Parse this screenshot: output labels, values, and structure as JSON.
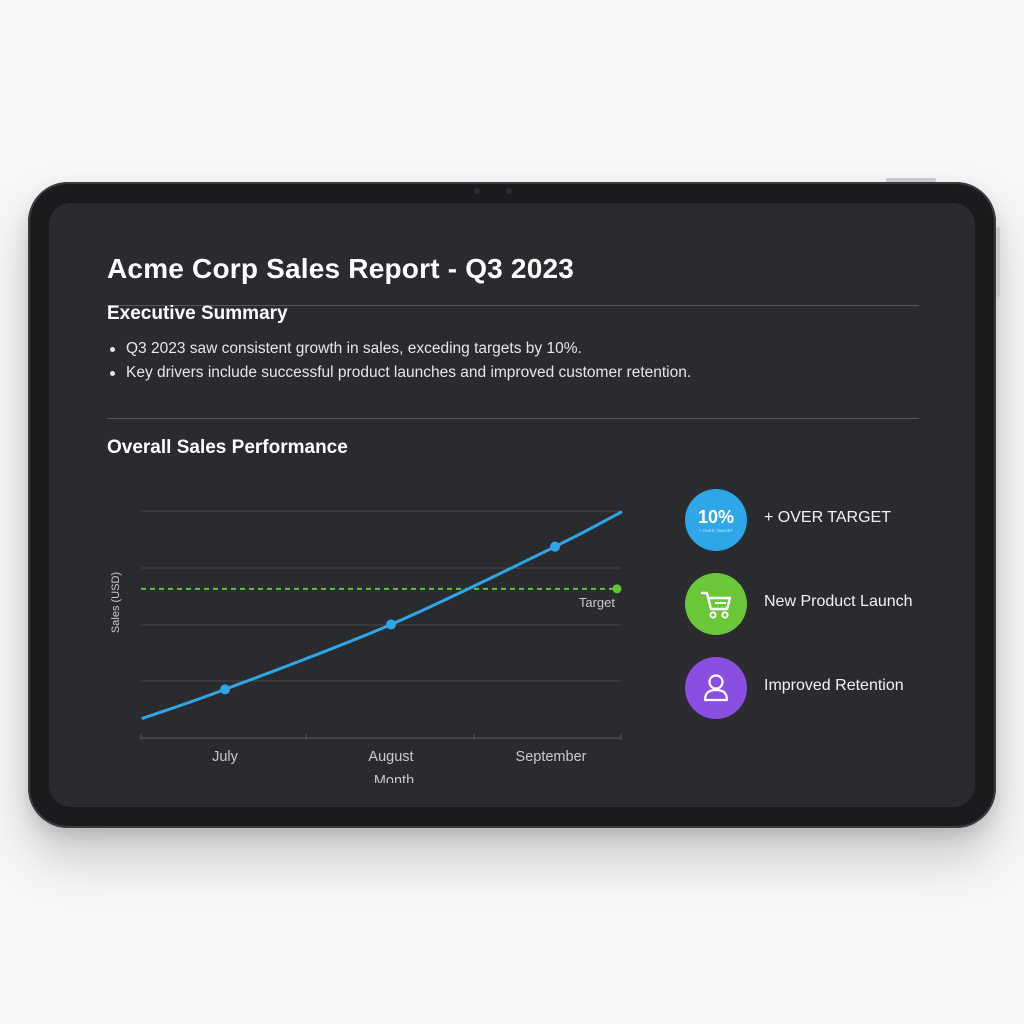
{
  "report": {
    "title": "Acme Corp Sales Report - Q3 2023"
  },
  "summary": {
    "heading": "Executive Summary",
    "bullets": [
      "Q3 2023 saw consistent growth in sales, exceding targets by 10%.",
      "Key drivers include successful product launches and improved customer retention."
    ]
  },
  "performance": {
    "heading": "Overall Sales Performance"
  },
  "chart_data": {
    "type": "line",
    "categories": [
      "July",
      "August",
      "September"
    ],
    "xlabel": "Month",
    "ylabel": "Sales (USD)",
    "series": [
      {
        "name": "",
        "color": "#2ea6e8",
        "points": [
          {
            "x": "July",
            "y": 1.0
          },
          {
            "x": "August",
            "y": 1.2
          },
          {
            "x": "September",
            "y": 1.44
          }
        ]
      }
    ],
    "target": {
      "label": "Target",
      "value": 1.31,
      "color": "#5ec43a"
    },
    "grid": true,
    "legend_placement": "right"
  },
  "legend": {
    "items": [
      {
        "badge_text": "10%",
        "badge_subtext": "+ OVER TARGET",
        "label": "+ OVER TARGET",
        "color": "#2ea6e8",
        "icon": "percent-badge"
      },
      {
        "label": "New Product Launch",
        "color": "#6cc63a",
        "icon": "shopping-cart-icon"
      },
      {
        "label": "Improved Retention",
        "color": "#8a4fe0",
        "icon": "user-icon"
      }
    ]
  }
}
